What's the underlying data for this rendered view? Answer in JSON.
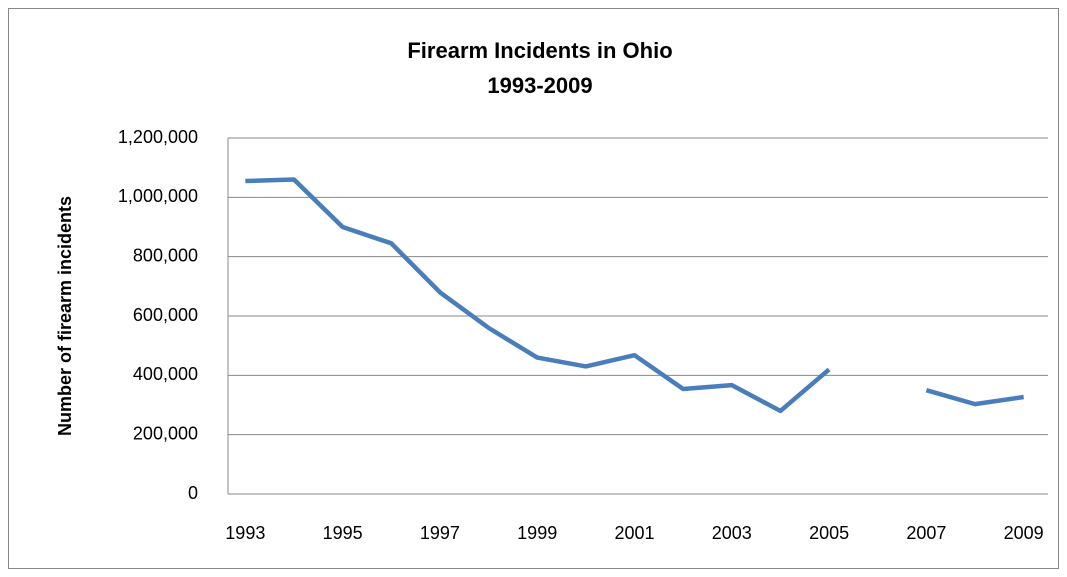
{
  "chart_data": {
    "type": "line",
    "title": "Firearm Incidents in Ohio",
    "subtitle": "1993-2009",
    "y_label": "Number of firearm incidents",
    "categories": [
      "1993",
      null,
      "1995",
      null,
      "1997",
      null,
      "1999",
      null,
      "2001",
      null,
      "2003",
      null,
      "2005",
      null,
      "2007",
      null,
      "2009"
    ],
    "series": [
      {
        "name": "Firearm incidents",
        "color": "#4a7ebb",
        "values": [
          1055000,
          1060000,
          900000,
          845000,
          680000,
          560000,
          460000,
          430000,
          468000,
          354000,
          367000,
          280000,
          420000,
          null,
          350000,
          303000,
          327000
        ]
      }
    ],
    "ylim": [
      0,
      1200000
    ],
    "yticks": [
      0,
      {
        "value": 200000,
        "label": "200,000"
      },
      {
        "value": 400000,
        "label": "400,000"
      },
      {
        "value": 600000,
        "label": "600,000"
      },
      {
        "value": 800000,
        "label": "800,000"
      },
      {
        "value": 1000000,
        "label": "1,000,000"
      },
      {
        "value": 1200000,
        "label": "1,200,000"
      }
    ],
    "grid": true
  }
}
